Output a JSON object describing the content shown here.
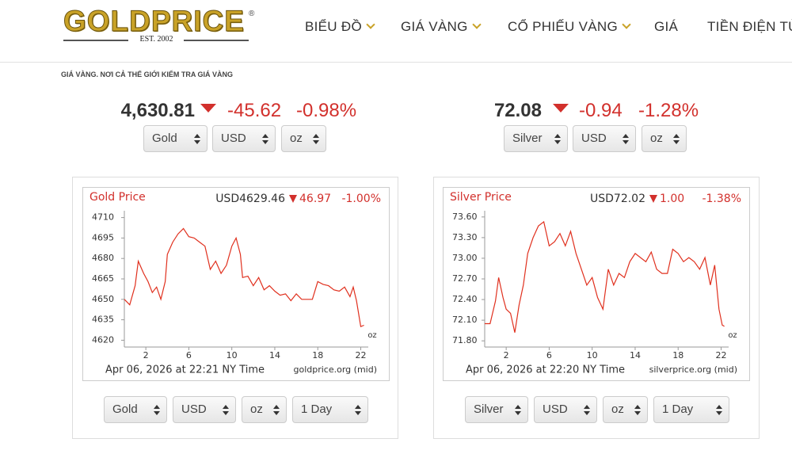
{
  "header": {
    "logo": "GOLDPRICE",
    "logo_mark": "®",
    "logo_est": "EST. 2002",
    "nav": [
      "BIỂU ĐỒ",
      "GIÁ VÀNG",
      "CỔ PHIẾU VÀNG",
      "GIÁ",
      "TIỀN ĐIỆN TỬ"
    ]
  },
  "tagline": "GIÁ VÀNG. NƠI CẢ THẾ GIỚI KIỂM TRA GIÁ VÀNG",
  "quotes": [
    {
      "price": "4,630.81",
      "change": "-45.62",
      "change_pct": "-0.98%",
      "selects": [
        "Gold",
        "USD",
        "oz"
      ]
    },
    {
      "price": "72.08",
      "change": "-0.94",
      "change_pct": "-1.28%",
      "selects": [
        "Silver",
        "USD",
        "oz"
      ]
    }
  ],
  "chart_data": [
    {
      "type": "line",
      "title": "Gold Price",
      "price": "USD4629.46",
      "change": "46.97",
      "change_pct": "-1.00%",
      "unit": "oz",
      "timestamp": "Apr 06, 2026 at 22:21 NY Time",
      "source": "goldprice.org (mid)",
      "color": "#e0301e",
      "x": [
        0,
        0.5,
        1,
        1.3,
        1.8,
        2.2,
        2.6,
        3,
        3.4,
        3.8,
        4,
        4.5,
        5,
        5.5,
        6,
        6.5,
        7,
        7.5,
        8,
        8.5,
        9,
        9.5,
        10,
        10.4,
        10.8,
        11,
        11.5,
        12,
        12.5,
        13,
        13.5,
        14,
        14.5,
        15,
        15.5,
        16,
        16.5,
        17,
        17.5,
        18,
        18.5,
        19,
        19.5,
        20,
        20.5,
        21,
        21.3,
        21.6,
        22,
        22.3
      ],
      "values": [
        4650,
        4646,
        4660,
        4678,
        4669,
        4663,
        4655,
        4659,
        4650,
        4663,
        4683,
        4692,
        4698,
        4702,
        4696,
        4695,
        4692,
        4689,
        4672,
        4678,
        4669,
        4675,
        4689,
        4695,
        4683,
        4666,
        4667,
        4660,
        4666,
        4657,
        4660,
        4656,
        4653,
        4654,
        4649,
        4654,
        4650,
        4650,
        4650,
        4663,
        4661,
        4660,
        4657,
        4656,
        4659,
        4652,
        4659,
        4649,
        4630,
        4631
      ],
      "xlim": [
        0,
        22.7
      ],
      "ylim": [
        4615,
        4715
      ],
      "xticks": [
        2,
        6,
        10,
        14,
        18,
        22
      ],
      "yticks": [
        4710,
        4695,
        4680,
        4665,
        4650,
        4635,
        4620
      ]
    },
    {
      "type": "line",
      "title": "Silver Price",
      "price": "USD72.02",
      "change": "1.00",
      "change_pct": "-1.38%",
      "unit": "oz",
      "timestamp": "Apr 06, 2026 at 22:20 NY Time",
      "source": "silverprice.org (mid)",
      "color": "#e0301e",
      "x": [
        0,
        0.5,
        1,
        1.3,
        1.7,
        2,
        2.4,
        2.8,
        3.2,
        3.6,
        4,
        4.5,
        5,
        5.5,
        6,
        6.5,
        7,
        7.5,
        8,
        8.5,
        9,
        9.5,
        10,
        10.5,
        11,
        11.5,
        12,
        12.5,
        13,
        13.5,
        14,
        14.5,
        15,
        15.5,
        16,
        16.5,
        17,
        17.5,
        18,
        18.5,
        19,
        19.5,
        20,
        20.5,
        21,
        21.4,
        21.8,
        22.1,
        22.3
      ],
      "values": [
        72.05,
        72.05,
        72.38,
        72.72,
        72.43,
        72.26,
        72.2,
        71.92,
        72.32,
        72.61,
        73.07,
        73.3,
        73.47,
        73.53,
        73.18,
        73.24,
        73.36,
        73.18,
        73.39,
        73.07,
        72.84,
        72.61,
        72.72,
        72.43,
        72.26,
        72.84,
        72.61,
        72.78,
        72.72,
        72.95,
        73.07,
        73.01,
        72.95,
        73.09,
        72.84,
        72.78,
        72.78,
        73.13,
        73.07,
        72.95,
        73.01,
        72.95,
        72.84,
        73.01,
        72.61,
        72.9,
        72.26,
        72.03,
        72.01
      ],
      "xlim": [
        0,
        22.7
      ],
      "ylim": [
        71.71,
        73.69
      ],
      "xticks": [
        2,
        6,
        10,
        14,
        18,
        22
      ],
      "yticks": [
        {
          "value": 73.6,
          "label": "73.60"
        },
        {
          "value": 73.3,
          "label": "73.30"
        },
        {
          "value": 73,
          "label": "73.00"
        },
        {
          "value": 72.7,
          "label": "72.70"
        },
        {
          "value": 72.4,
          "label": "72.40"
        },
        {
          "value": 72.1,
          "label": "72.10"
        },
        {
          "value": 71.8,
          "label": "71.80"
        }
      ]
    }
  ],
  "panel_selects": [
    [
      "Gold",
      "USD",
      "oz",
      "1 Day"
    ],
    [
      "Silver",
      "USD",
      "oz",
      "1 Day"
    ]
  ]
}
